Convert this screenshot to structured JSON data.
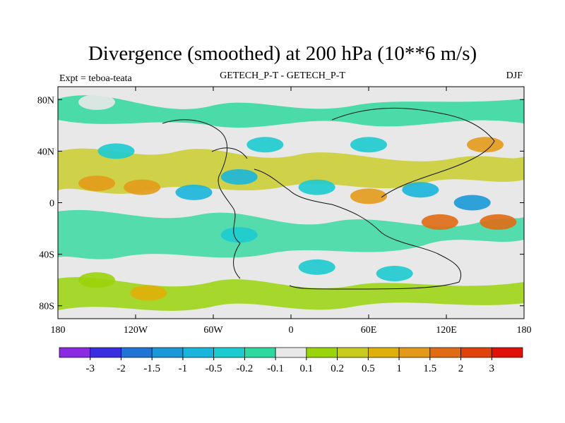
{
  "chart_data": {
    "type": "heatmap",
    "title": "Divergence (smoothed) at 200 hPa (10**6 m/s)",
    "subtitle": "GETECH_P-T - GETECH_P-T",
    "left_note": "Expt = teboa-teata",
    "right_note": "DJF",
    "x_ticks": [
      {
        "value": -180,
        "label": "180"
      },
      {
        "value": -120,
        "label": "120W"
      },
      {
        "value": -60,
        "label": "60W"
      },
      {
        "value": 0,
        "label": "0"
      },
      {
        "value": 60,
        "label": "60E"
      },
      {
        "value": 120,
        "label": "120E"
      },
      {
        "value": 180,
        "label": "180"
      }
    ],
    "y_ticks": [
      {
        "value": 80,
        "label": "80N"
      },
      {
        "value": 40,
        "label": "40N"
      },
      {
        "value": 0,
        "label": "0"
      },
      {
        "value": -40,
        "label": "40S"
      },
      {
        "value": -80,
        "label": "80S"
      }
    ],
    "xlim": [
      -180,
      180
    ],
    "ylim": [
      -90,
      90
    ],
    "colorbar": {
      "labels": [
        "-3",
        "-2",
        "-1.5",
        "-1",
        "-0.5",
        "-0.2",
        "-0.1",
        "0.1",
        "0.2",
        "0.5",
        "1",
        "1.5",
        "2",
        "3"
      ],
      "colors": [
        "#8a2be2",
        "#3a2fe0",
        "#1f74d6",
        "#1a98d8",
        "#1ab5dc",
        "#1ccbd0",
        "#2ed89e",
        "#e8e8e8",
        "#9ad40a",
        "#c8cc20",
        "#e0b00a",
        "#e39a1b",
        "#e06b14",
        "#e0420a",
        "#e01208"
      ]
    },
    "features": [
      {
        "lon": -150,
        "lat": 78,
        "level": 7
      },
      {
        "lon": -135,
        "lat": 40,
        "level": 5
      },
      {
        "lon": -150,
        "lat": 15,
        "level": 11
      },
      {
        "lon": -115,
        "lat": 12,
        "level": 11
      },
      {
        "lon": -75,
        "lat": 8,
        "level": 4
      },
      {
        "lon": -40,
        "lat": 20,
        "level": 4
      },
      {
        "lon": -20,
        "lat": 45,
        "level": 5
      },
      {
        "lon": 20,
        "lat": 12,
        "level": 5
      },
      {
        "lon": 60,
        "lat": 5,
        "level": 11
      },
      {
        "lon": 100,
        "lat": 10,
        "level": 4
      },
      {
        "lon": 140,
        "lat": 0,
        "level": 3
      },
      {
        "lon": 160,
        "lat": -15,
        "level": 12
      },
      {
        "lon": 115,
        "lat": -15,
        "level": 12
      },
      {
        "lon": -40,
        "lat": -25,
        "level": 5
      },
      {
        "lon": 20,
        "lat": -50,
        "level": 5
      },
      {
        "lon": 80,
        "lat": -55,
        "level": 5
      },
      {
        "lon": -110,
        "lat": -70,
        "level": 10
      },
      {
        "lon": -150,
        "lat": -60,
        "level": 8
      },
      {
        "lon": 150,
        "lat": 45,
        "level": 11
      },
      {
        "lon": 60,
        "lat": 45,
        "level": 5
      }
    ]
  }
}
